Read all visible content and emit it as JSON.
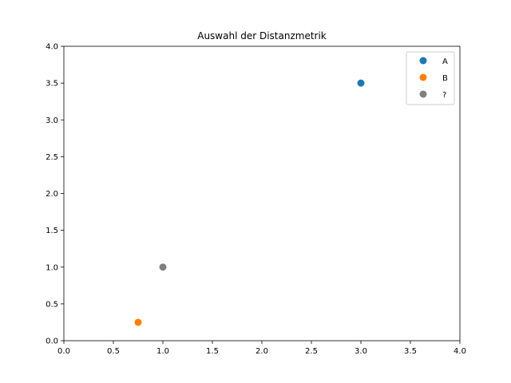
{
  "chart_data": {
    "type": "scatter",
    "title": "Auswahl der Distanzmetrik",
    "xlabel": "",
    "ylabel": "",
    "xlim": [
      0,
      4
    ],
    "ylim": [
      0,
      4
    ],
    "x_ticks": [
      "0.0",
      "0.5",
      "1.0",
      "1.5",
      "2.0",
      "2.5",
      "3.0",
      "3.5",
      "4.0"
    ],
    "y_ticks": [
      "0.0",
      "0.5",
      "1.0",
      "1.5",
      "2.0",
      "2.5",
      "3.0",
      "3.5",
      "4.0"
    ],
    "grid": false,
    "legend_position": "top-right",
    "series": [
      {
        "name": "A",
        "color": "#1f77b4",
        "x": [
          3.0
        ],
        "y": [
          3.5
        ]
      },
      {
        "name": "B",
        "color": "#ff7f0e",
        "x": [
          0.75
        ],
        "y": [
          0.25
        ]
      },
      {
        "name": "?",
        "color": "#7f7f7f",
        "x": [
          1.0
        ],
        "y": [
          1.0
        ]
      }
    ]
  }
}
